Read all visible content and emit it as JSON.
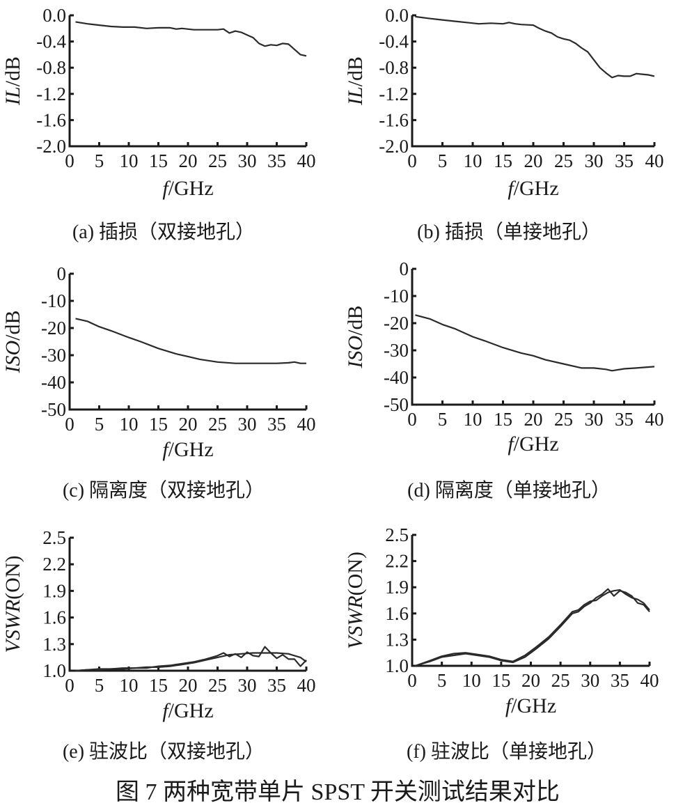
{
  "figure_title": "图 7 两种宽带单片 SPST 开关测试结果对比",
  "chart_data": [
    {
      "id": "a",
      "type": "line",
      "caption": "(a) 插损（双接地孔）",
      "xlabel_italic": "f",
      "xlabel_unit": "/GHz",
      "ylabel_italic": "IL",
      "ylabel_unit": "/dB",
      "xlim": [
        0,
        40
      ],
      "ylim": [
        -2.0,
        0.0
      ],
      "xticks": [
        0,
        5,
        10,
        15,
        20,
        25,
        30,
        35,
        40
      ],
      "yticks": [
        0.0,
        -0.4,
        -0.8,
        -1.2,
        -1.6,
        -2.0
      ],
      "ytick_labels": [
        "0.0",
        "-0.4",
        "-0.8",
        "-1.2",
        "-1.6",
        "-2.0"
      ],
      "series": [
        {
          "x": [
            1,
            3,
            5,
            7,
            9,
            11,
            13,
            15,
            17,
            18,
            19,
            21,
            23,
            25,
            26,
            27,
            28,
            29,
            30,
            31,
            32,
            33,
            34,
            35,
            36,
            37,
            38,
            39,
            40
          ],
          "y": [
            -0.1,
            -0.13,
            -0.15,
            -0.17,
            -0.18,
            -0.18,
            -0.2,
            -0.19,
            -0.19,
            -0.21,
            -0.2,
            -0.22,
            -0.22,
            -0.22,
            -0.21,
            -0.27,
            -0.24,
            -0.26,
            -0.3,
            -0.34,
            -0.43,
            -0.47,
            -0.45,
            -0.46,
            -0.43,
            -0.44,
            -0.52,
            -0.6,
            -0.62
          ]
        }
      ]
    },
    {
      "id": "b",
      "type": "line",
      "caption": "(b) 插损（单接地孔）",
      "xlabel_italic": "f",
      "xlabel_unit": "/GHz",
      "ylabel_italic": "IL",
      "ylabel_unit": "/dB",
      "xlim": [
        0,
        40
      ],
      "ylim": [
        -2.0,
        0.0
      ],
      "xticks": [
        0,
        5,
        10,
        15,
        20,
        25,
        30,
        35,
        40
      ],
      "yticks": [
        0.0,
        -0.4,
        -0.8,
        -1.2,
        -1.6,
        -2.0
      ],
      "ytick_labels": [
        "0.0",
        "-0.4",
        "-0.8",
        "-1.2",
        "-1.6",
        "-2.0"
      ],
      "series": [
        {
          "x": [
            0.5,
            3,
            5,
            7,
            9,
            11,
            13,
            15,
            16,
            17,
            18,
            20,
            21,
            22,
            23,
            24,
            25,
            26,
            27,
            28,
            29,
            30,
            31,
            32,
            33,
            34,
            35,
            36,
            37,
            38,
            39,
            40
          ],
          "y": [
            -0.02,
            -0.05,
            -0.07,
            -0.09,
            -0.11,
            -0.13,
            -0.12,
            -0.13,
            -0.11,
            -0.13,
            -0.14,
            -0.15,
            -0.2,
            -0.24,
            -0.27,
            -0.33,
            -0.36,
            -0.38,
            -0.43,
            -0.5,
            -0.56,
            -0.68,
            -0.8,
            -0.88,
            -0.95,
            -0.92,
            -0.93,
            -0.93,
            -0.89,
            -0.9,
            -0.91,
            -0.93
          ]
        }
      ]
    },
    {
      "id": "c",
      "type": "line",
      "caption": "(c) 隔离度（双接地孔）",
      "xlabel_italic": "f",
      "xlabel_unit": "/GHz",
      "ylabel_italic": "ISO",
      "ylabel_unit": "/dB",
      "xlim": [
        0,
        40
      ],
      "ylim": [
        -50,
        0
      ],
      "xticks": [
        0,
        5,
        10,
        15,
        20,
        25,
        30,
        35,
        40
      ],
      "yticks": [
        0,
        -10,
        -20,
        -30,
        -40,
        -50
      ],
      "ytick_labels": [
        "0",
        "-10",
        "-20",
        "-30",
        "-40",
        "-50"
      ],
      "series": [
        {
          "x": [
            1,
            3,
            5,
            7,
            10,
            12,
            15,
            18,
            20,
            22,
            25,
            28,
            30,
            32,
            35,
            37,
            38,
            39,
            40
          ],
          "y": [
            -16.5,
            -17.5,
            -19.5,
            -21,
            -23.5,
            -25,
            -27.5,
            -29.5,
            -30.5,
            -31.5,
            -32.5,
            -33,
            -33,
            -33,
            -33,
            -32.8,
            -32.5,
            -33,
            -33
          ]
        }
      ]
    },
    {
      "id": "d",
      "type": "line",
      "caption": "(d) 隔离度（单接地孔）",
      "xlabel_italic": "f",
      "xlabel_unit": "/GHz",
      "ylabel_italic": "ISO",
      "ylabel_unit": "/dB",
      "xlim": [
        0,
        40
      ],
      "ylim": [
        -50,
        0
      ],
      "xticks": [
        0,
        5,
        10,
        15,
        20,
        25,
        30,
        35,
        40
      ],
      "yticks": [
        0,
        -10,
        -20,
        -30,
        -40,
        -50
      ],
      "ytick_labels": [
        "0",
        "-10",
        "-20",
        "-30",
        "-40",
        "-50"
      ],
      "series": [
        {
          "x": [
            0.5,
            3,
            5,
            7,
            10,
            12,
            15,
            18,
            20,
            22,
            25,
            28,
            30,
            32,
            33,
            35,
            37,
            40
          ],
          "y": [
            -17,
            -18.5,
            -20.5,
            -22,
            -25,
            -26.5,
            -29,
            -31,
            -32,
            -33.5,
            -35,
            -36.5,
            -36.5,
            -37,
            -37.5,
            -36.8,
            -36.5,
            -36
          ]
        }
      ]
    },
    {
      "id": "e",
      "type": "line",
      "caption": "(e) 驻波比（双接地孔）",
      "xlabel_italic": "f",
      "xlabel_unit": "/GHz",
      "ylabel_italic": "VSWR",
      "ylabel_unit": "(ON)",
      "xlim": [
        0,
        40
      ],
      "ylim": [
        1.0,
        2.5
      ],
      "xticks": [
        0,
        5,
        10,
        15,
        20,
        25,
        30,
        35,
        40
      ],
      "yticks": [
        1.0,
        1.3,
        1.6,
        1.9,
        2.2,
        2.5
      ],
      "ytick_labels": [
        "1.0",
        "1.3",
        "1.6",
        "1.9",
        "2.2",
        "2.5"
      ],
      "series": [
        {
          "x": [
            1,
            3,
            5,
            7,
            9,
            11,
            13,
            15,
            17,
            19,
            21,
            23,
            25,
            26,
            27,
            28,
            29,
            30,
            31,
            32,
            33,
            34,
            35,
            36,
            37,
            38,
            39,
            40
          ],
          "y": [
            1.0,
            1.01,
            1.01,
            1.02,
            1.02,
            1.03,
            1.03,
            1.05,
            1.06,
            1.08,
            1.1,
            1.13,
            1.17,
            1.2,
            1.16,
            1.19,
            1.15,
            1.21,
            1.17,
            1.16,
            1.27,
            1.2,
            1.14,
            1.18,
            1.13,
            1.13,
            1.05,
            1.12
          ]
        },
        {
          "x": [
            1,
            3,
            5,
            7,
            9,
            11,
            13,
            15,
            17,
            19,
            21,
            23,
            25,
            27,
            29,
            31,
            33,
            35,
            37,
            38,
            39,
            40
          ],
          "y": [
            1.0,
            1.01,
            1.02,
            1.02,
            1.03,
            1.03,
            1.04,
            1.04,
            1.05,
            1.07,
            1.09,
            1.12,
            1.15,
            1.18,
            1.19,
            1.2,
            1.2,
            1.2,
            1.19,
            1.17,
            1.15,
            1.1
          ]
        }
      ]
    },
    {
      "id": "f",
      "type": "line",
      "caption": "(f) 驻波比（单接地孔）",
      "xlabel_italic": "f",
      "xlabel_unit": "/GHz",
      "ylabel_italic": "VSWR",
      "ylabel_unit": "(ON)",
      "xlim": [
        0,
        40
      ],
      "ylim": [
        1.0,
        2.5
      ],
      "xticks": [
        0,
        5,
        10,
        15,
        20,
        25,
        30,
        35,
        40
      ],
      "yticks": [
        1.0,
        1.3,
        1.6,
        1.9,
        2.2,
        2.5
      ],
      "ytick_labels": [
        "1.0",
        "1.3",
        "1.6",
        "1.9",
        "2.2",
        "2.5"
      ],
      "series": [
        {
          "x": [
            0.5,
            3,
            5,
            7,
            9,
            11,
            13,
            15,
            17,
            19,
            21,
            23,
            25,
            27,
            28,
            29,
            30,
            31,
            32,
            33,
            34,
            35,
            36,
            37,
            38,
            39,
            40
          ],
          "y": [
            1.0,
            1.05,
            1.1,
            1.12,
            1.14,
            1.12,
            1.1,
            1.06,
            1.04,
            1.1,
            1.2,
            1.31,
            1.45,
            1.6,
            1.62,
            1.68,
            1.72,
            1.78,
            1.82,
            1.88,
            1.8,
            1.86,
            1.84,
            1.8,
            1.72,
            1.7,
            1.62
          ]
        },
        {
          "x": [
            0.5,
            3,
            5,
            7,
            9,
            11,
            13,
            15,
            17,
            19,
            21,
            23,
            25,
            27,
            28,
            29,
            30,
            31,
            32,
            33,
            34,
            35,
            36,
            37,
            38,
            39,
            40
          ],
          "y": [
            1.0,
            1.06,
            1.11,
            1.14,
            1.15,
            1.13,
            1.11,
            1.07,
            1.05,
            1.12,
            1.22,
            1.33,
            1.47,
            1.62,
            1.64,
            1.7,
            1.74,
            1.75,
            1.8,
            1.84,
            1.86,
            1.87,
            1.82,
            1.78,
            1.76,
            1.72,
            1.64
          ]
        }
      ]
    }
  ]
}
